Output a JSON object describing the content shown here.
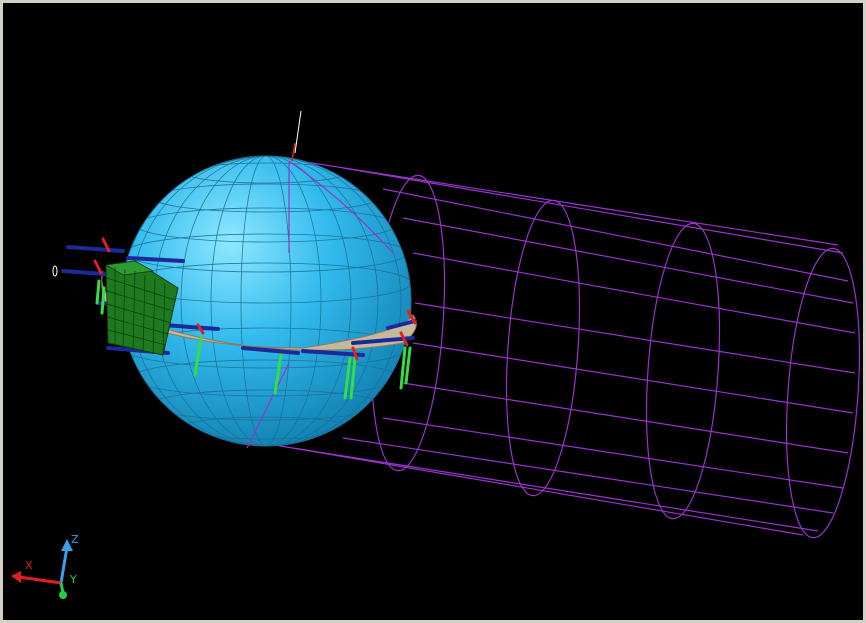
{
  "viewport": {
    "background": "#000000"
  },
  "triad": {
    "z_label": "Z",
    "x_label": "X",
    "y_label": "Y",
    "z_color": "#3aa0e8",
    "x_color": "#e02020",
    "y_color": "#20d040"
  },
  "model": {
    "sphere_color": "#33bbee",
    "sphere_mesh_color": "#1b6f95",
    "cylinder_wire_color": "#9933cc",
    "ring_color": "#c8b89a",
    "cube_color": "#1f7a1f",
    "cube_mesh_color": "#0c3c0c",
    "rod_blue": "#1a2a9a",
    "rod_green": "#33dd44",
    "rod_red": "#dd2222",
    "vertical_axis_color": "#ffffff"
  }
}
